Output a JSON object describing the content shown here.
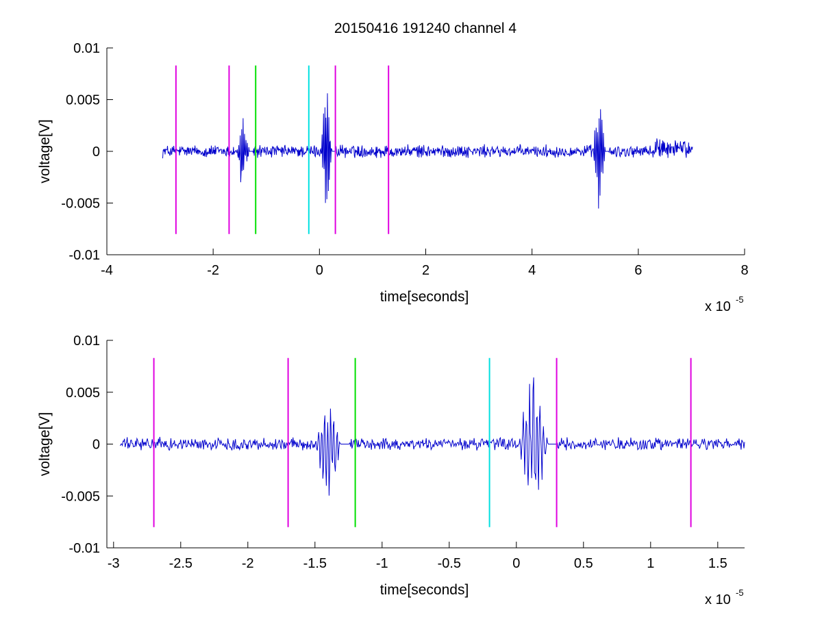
{
  "figure": {
    "title": "20150416 191240 channel 4"
  },
  "chart_data": [
    {
      "type": "line",
      "title": "20150416 191240 channel 4",
      "xlabel": "time[seconds]",
      "ylabel": "voltage[V]",
      "x_exponent_base": "x 10",
      "x_exponent_power": "-5",
      "xlim": [
        -4,
        8
      ],
      "ylim": [
        -0.01,
        0.01
      ],
      "xticks": [
        -4,
        -2,
        0,
        2,
        4,
        6,
        8
      ],
      "xtick_labels": [
        "-4",
        "-2",
        "0",
        "2",
        "4",
        "6",
        "8"
      ],
      "yticks": [
        -0.01,
        -0.005,
        0,
        0.005,
        0.01
      ],
      "ytick_labels": [
        "-0.01",
        "-0.005",
        "0",
        "0.005",
        "0.01"
      ],
      "grid": false,
      "series": [
        {
          "color": "#0000cc",
          "x_range": [
            -2.95,
            7.02
          ],
          "bursts": [
            {
              "x": [
                -1.55,
                -1.25
              ],
              "max": 0.0037,
              "min": -0.0056
            },
            {
              "x": [
                0.02,
                0.3
              ],
              "max": 0.0075,
              "min": -0.0058
            },
            {
              "x": [
                5.15,
                5.45
              ],
              "max": 0.0069,
              "min": -0.0072
            }
          ]
        }
      ],
      "markers": [
        {
          "x": -2.7,
          "color": "#e000e0",
          "y": [
            -0.008,
            0.0083
          ]
        },
        {
          "x": -1.7,
          "color": "#e000e0",
          "y": [
            -0.008,
            0.0083
          ]
        },
        {
          "x": -1.2,
          "color": "#00e000",
          "y": [
            -0.008,
            0.0083
          ]
        },
        {
          "x": -0.2,
          "color": "#00e0e0",
          "y": [
            -0.008,
            0.0083
          ]
        },
        {
          "x": 0.3,
          "color": "#e000e0",
          "y": [
            -0.008,
            0.0083
          ]
        },
        {
          "x": 1.3,
          "color": "#e000e0",
          "y": [
            -0.008,
            0.0083
          ]
        }
      ]
    },
    {
      "type": "line",
      "title": "",
      "xlabel": "time[seconds]",
      "ylabel": "voltage[V]",
      "x_exponent_base": "x 10",
      "x_exponent_power": "-5",
      "xlim": [
        -3.05,
        1.7
      ],
      "ylim": [
        -0.01,
        0.01
      ],
      "xticks": [
        -3,
        -2.5,
        -2,
        -1.5,
        -1,
        -0.5,
        0,
        0.5,
        1,
        1.5
      ],
      "xtick_labels": [
        "-3",
        "-2.5",
        "-2",
        "-1.5",
        "-1",
        "-0.5",
        "0",
        "0.5",
        "1",
        "1.5"
      ],
      "yticks": [
        -0.01,
        -0.005,
        0,
        0.005,
        0.01
      ],
      "ytick_labels": [
        "-0.01",
        "-0.005",
        "0",
        "0.005",
        "0.01"
      ],
      "grid": false,
      "series": [
        {
          "color": "#0000cc",
          "x_range": [
            -2.95,
            1.7
          ],
          "bursts": [
            {
              "x": [
                -1.5,
                -1.25
              ],
              "max": 0.0037,
              "min": -0.0056
            },
            {
              "x": [
                0.02,
                0.3
              ],
              "max": 0.0075,
              "min": -0.0065
            }
          ]
        }
      ],
      "markers": [
        {
          "x": -2.7,
          "color": "#e000e0",
          "y": [
            -0.008,
            0.0083
          ]
        },
        {
          "x": -1.7,
          "color": "#e000e0",
          "y": [
            -0.008,
            0.0083
          ]
        },
        {
          "x": -1.2,
          "color": "#00e000",
          "y": [
            -0.008,
            0.0083
          ]
        },
        {
          "x": -0.2,
          "color": "#00e0e0",
          "y": [
            -0.008,
            0.0083
          ]
        },
        {
          "x": 0.3,
          "color": "#e000e0",
          "y": [
            -0.008,
            0.0083
          ]
        },
        {
          "x": 1.3,
          "color": "#e000e0",
          "y": [
            -0.008,
            0.0083
          ]
        }
      ]
    }
  ]
}
